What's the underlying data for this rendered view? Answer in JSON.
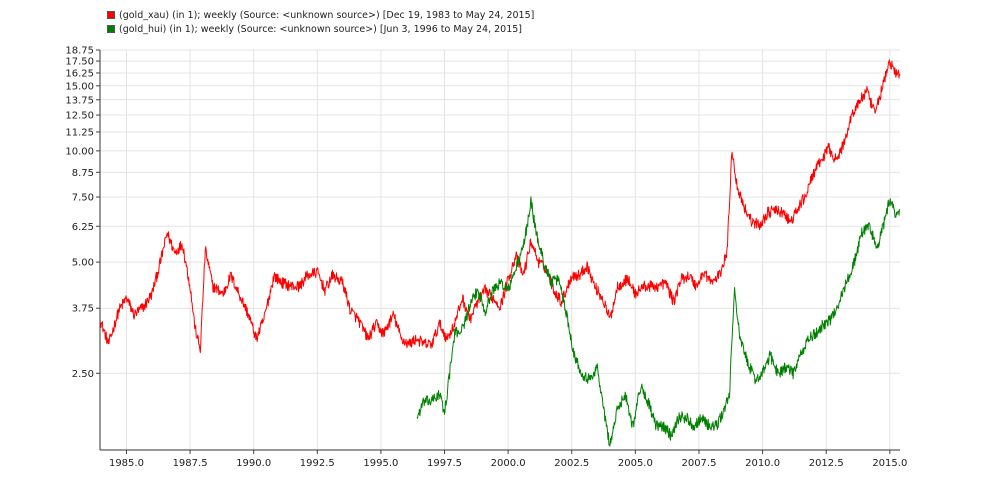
{
  "chart_data": {
    "type": "line",
    "title": "",
    "xlabel": "",
    "ylabel": "",
    "y_scale": "log",
    "grid": true,
    "legend_position": "top-left",
    "xlim": [
      1983.96,
      2015.4
    ],
    "ylim": [
      1.55,
      18.75
    ],
    "x_ticks": [
      "1985.0",
      "1987.5",
      "1990.0",
      "1992.5",
      "1995.0",
      "1997.5",
      "2000.0",
      "2002.5",
      "2005.0",
      "2007.5",
      "2010.0",
      "2012.5",
      "2015.0"
    ],
    "y_ticks": [
      "18.75",
      "17.50",
      "16.25",
      "15.00",
      "13.75",
      "12.50",
      "11.25",
      "10.00",
      "8.75",
      "7.50",
      "6.25",
      "5.00",
      "3.75",
      "2.50"
    ],
    "series": [
      {
        "name": "(gold_xau) (in 1); weekly (Source: <unknown source>) [Dec 19, 1983 to May 24, 2015]",
        "color": "#ff0000",
        "points": [
          [
            1983.96,
            3.5
          ],
          [
            1984.3,
            3.0
          ],
          [
            1984.7,
            3.7
          ],
          [
            1985.0,
            4.0
          ],
          [
            1985.3,
            3.6
          ],
          [
            1985.7,
            3.8
          ],
          [
            1986.0,
            4.1
          ],
          [
            1986.3,
            4.9
          ],
          [
            1986.6,
            6.0
          ],
          [
            1986.9,
            5.3
          ],
          [
            1987.2,
            5.6
          ],
          [
            1987.5,
            4.3
          ],
          [
            1987.7,
            3.3
          ],
          [
            1987.9,
            2.9
          ],
          [
            1988.1,
            5.4
          ],
          [
            1988.4,
            4.3
          ],
          [
            1988.8,
            4.1
          ],
          [
            1989.1,
            4.6
          ],
          [
            1989.5,
            4.0
          ],
          [
            1989.8,
            3.6
          ],
          [
            1990.1,
            3.1
          ],
          [
            1990.4,
            3.5
          ],
          [
            1990.8,
            4.6
          ],
          [
            1991.1,
            4.4
          ],
          [
            1991.5,
            4.3
          ],
          [
            1991.8,
            4.3
          ],
          [
            1992.1,
            4.6
          ],
          [
            1992.5,
            4.7
          ],
          [
            1992.8,
            4.2
          ],
          [
            1993.1,
            4.6
          ],
          [
            1993.5,
            4.4
          ],
          [
            1993.8,
            3.7
          ],
          [
            1994.1,
            3.5
          ],
          [
            1994.5,
            3.1
          ],
          [
            1994.8,
            3.4
          ],
          [
            1995.1,
            3.2
          ],
          [
            1995.5,
            3.6
          ],
          [
            1995.8,
            3.1
          ],
          [
            1996.1,
            3.0
          ],
          [
            1996.4,
            3.1
          ],
          [
            1996.7,
            3.0
          ],
          [
            1997.0,
            3.0
          ],
          [
            1997.3,
            3.4
          ],
          [
            1997.6,
            3.1
          ],
          [
            1997.9,
            3.4
          ],
          [
            1998.2,
            4.0
          ],
          [
            1998.5,
            3.5
          ],
          [
            1998.8,
            3.9
          ],
          [
            1999.1,
            4.2
          ],
          [
            1999.4,
            4.0
          ],
          [
            1999.7,
            3.8
          ],
          [
            2000.0,
            4.5
          ],
          [
            2000.3,
            5.2
          ],
          [
            2000.6,
            4.6
          ],
          [
            2000.9,
            5.7
          ],
          [
            2001.2,
            5.0
          ],
          [
            2001.5,
            4.8
          ],
          [
            2001.8,
            4.2
          ],
          [
            2002.1,
            3.9
          ],
          [
            2002.5,
            4.6
          ],
          [
            2002.8,
            4.6
          ],
          [
            2003.1,
            4.9
          ],
          [
            2003.4,
            4.3
          ],
          [
            2003.7,
            4.0
          ],
          [
            2004.0,
            3.5
          ],
          [
            2004.3,
            4.3
          ],
          [
            2004.7,
            4.5
          ],
          [
            2005.0,
            4.1
          ],
          [
            2005.3,
            4.3
          ],
          [
            2005.6,
            4.3
          ],
          [
            2005.9,
            4.3
          ],
          [
            2006.2,
            4.4
          ],
          [
            2006.5,
            3.9
          ],
          [
            2006.8,
            4.5
          ],
          [
            2007.1,
            4.6
          ],
          [
            2007.4,
            4.3
          ],
          [
            2007.7,
            4.7
          ],
          [
            2008.0,
            4.4
          ],
          [
            2008.3,
            4.6
          ],
          [
            2008.6,
            5.3
          ],
          [
            2008.8,
            10.1
          ],
          [
            2009.0,
            8.0
          ],
          [
            2009.3,
            7.0
          ],
          [
            2009.6,
            6.4
          ],
          [
            2009.9,
            6.3
          ],
          [
            2010.2,
            6.8
          ],
          [
            2010.5,
            6.9
          ],
          [
            2010.8,
            6.8
          ],
          [
            2011.1,
            6.4
          ],
          [
            2011.4,
            7.0
          ],
          [
            2011.7,
            7.6
          ],
          [
            2012.0,
            8.7
          ],
          [
            2012.3,
            9.4
          ],
          [
            2012.6,
            10.2
          ],
          [
            2012.9,
            9.4
          ],
          [
            2013.2,
            10.5
          ],
          [
            2013.5,
            12.5
          ],
          [
            2013.8,
            13.6
          ],
          [
            2014.1,
            14.5
          ],
          [
            2014.4,
            12.6
          ],
          [
            2014.7,
            14.8
          ],
          [
            2015.0,
            17.5
          ],
          [
            2015.2,
            16.3
          ],
          [
            2015.4,
            16.0
          ]
        ]
      },
      {
        "name": "(gold_hui) (in 1); weekly (Source: <unknown source>) [Jun 3, 1996 to May 24, 2015]",
        "color": "#008000",
        "points": [
          [
            1996.42,
            1.9
          ],
          [
            1996.7,
            2.1
          ],
          [
            1997.0,
            2.1
          ],
          [
            1997.3,
            2.2
          ],
          [
            1997.5,
            1.95
          ],
          [
            1997.7,
            2.5
          ],
          [
            1997.9,
            3.2
          ],
          [
            1998.2,
            3.3
          ],
          [
            1998.5,
            3.8
          ],
          [
            1998.8,
            4.2
          ],
          [
            1999.1,
            3.7
          ],
          [
            1999.4,
            4.2
          ],
          [
            1999.7,
            4.4
          ],
          [
            2000.0,
            4.2
          ],
          [
            2000.3,
            4.8
          ],
          [
            2000.6,
            5.5
          ],
          [
            2000.9,
            7.3
          ],
          [
            2001.1,
            6.0
          ],
          [
            2001.4,
            5.0
          ],
          [
            2001.7,
            4.4
          ],
          [
            2002.0,
            4.5
          ],
          [
            2002.3,
            3.6
          ],
          [
            2002.6,
            2.8
          ],
          [
            2002.9,
            2.5
          ],
          [
            2003.2,
            2.4
          ],
          [
            2003.5,
            2.6
          ],
          [
            2003.8,
            1.9
          ],
          [
            2004.0,
            1.6
          ],
          [
            2004.3,
            2.0
          ],
          [
            2004.6,
            2.2
          ],
          [
            2004.9,
            1.8
          ],
          [
            2005.2,
            2.3
          ],
          [
            2005.5,
            2.1
          ],
          [
            2005.8,
            1.8
          ],
          [
            2006.1,
            1.8
          ],
          [
            2006.4,
            1.7
          ],
          [
            2006.7,
            1.9
          ],
          [
            2007.0,
            1.9
          ],
          [
            2007.3,
            1.8
          ],
          [
            2007.6,
            1.9
          ],
          [
            2007.9,
            1.8
          ],
          [
            2008.2,
            1.8
          ],
          [
            2008.5,
            2.0
          ],
          [
            2008.7,
            2.2
          ],
          [
            2008.9,
            4.3
          ],
          [
            2009.1,
            3.1
          ],
          [
            2009.4,
            2.7
          ],
          [
            2009.7,
            2.4
          ],
          [
            2010.0,
            2.5
          ],
          [
            2010.3,
            2.8
          ],
          [
            2010.6,
            2.5
          ],
          [
            2010.9,
            2.6
          ],
          [
            2011.2,
            2.5
          ],
          [
            2011.5,
            2.8
          ],
          [
            2011.8,
            3.1
          ],
          [
            2012.1,
            3.2
          ],
          [
            2012.4,
            3.4
          ],
          [
            2012.7,
            3.5
          ],
          [
            2013.0,
            3.9
          ],
          [
            2013.3,
            4.4
          ],
          [
            2013.6,
            5.0
          ],
          [
            2013.9,
            6.0
          ],
          [
            2014.2,
            6.3
          ],
          [
            2014.5,
            5.4
          ],
          [
            2014.8,
            6.5
          ],
          [
            2015.0,
            7.4
          ],
          [
            2015.2,
            6.8
          ],
          [
            2015.4,
            6.9
          ]
        ]
      }
    ]
  }
}
